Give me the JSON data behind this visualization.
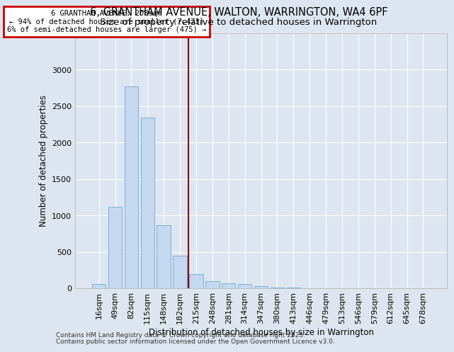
{
  "title": "6, GRANTHAM AVENUE, WALTON, WARRINGTON, WA4 6PF",
  "subtitle": "Size of property relative to detached houses in Warrington",
  "xlabel": "Distribution of detached houses by size in Warrington",
  "ylabel": "Number of detached properties",
  "footnote1": "Contains HM Land Registry data © Crown copyright and database right 2025.",
  "footnote2": "Contains public sector information licensed under the Open Government Licence v3.0.",
  "categories": [
    "16sqm",
    "49sqm",
    "82sqm",
    "115sqm",
    "148sqm",
    "182sqm",
    "215sqm",
    "248sqm",
    "281sqm",
    "314sqm",
    "347sqm",
    "380sqm",
    "413sqm",
    "446sqm",
    "479sqm",
    "513sqm",
    "546sqm",
    "579sqm",
    "612sqm",
    "645sqm",
    "678sqm"
  ],
  "values": [
    55,
    1120,
    2770,
    2340,
    870,
    450,
    195,
    100,
    70,
    55,
    30,
    10,
    5,
    2,
    1,
    0,
    0,
    0,
    0,
    0,
    0
  ],
  "bar_color": "#c5d8ef",
  "bar_edge_color": "#7bafd4",
  "vline_x": 5.5,
  "vline_color": "#8b0000",
  "annotation_text": "6 GRANTHAM AVENUE: 208sqm\n← 94% of detached houses are smaller (7,473)\n6% of semi-detached houses are larger (475) →",
  "annotation_box_color": "#cc0000",
  "annotation_fill": "#ffffff",
  "ylim": [
    0,
    3500
  ],
  "bg_color": "#dde6f0",
  "plot_bg_color": "#dde6f0",
  "grid_color": "#ffffff",
  "title_fontsize": 10.5,
  "subtitle_fontsize": 9.5,
  "xlabel_fontsize": 8.5,
  "ylabel_fontsize": 8.5,
  "tick_fontsize": 8,
  "footnote_fontsize": 6.5
}
